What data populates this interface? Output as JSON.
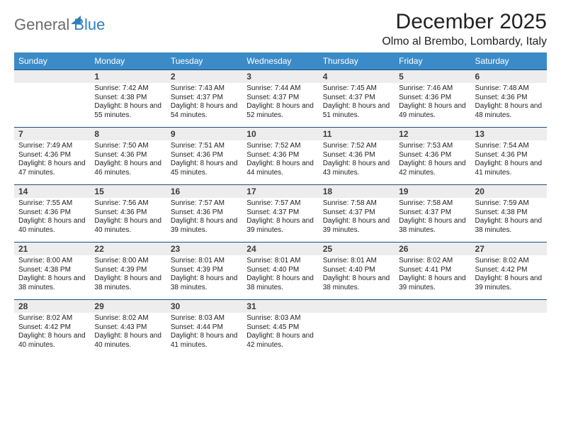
{
  "logo": {
    "text1": "General",
    "text2": "Blue"
  },
  "title": "December 2025",
  "location": "Olmo al Brembo, Lombardy, Italy",
  "colors": {
    "header_bg": "#3b8bc8",
    "header_fg": "#ffffff",
    "row_divider": "#1f4e79",
    "daynum_bg": "#ededed",
    "text": "#222222",
    "logo_gray": "#6b6b6b",
    "logo_blue": "#2f7fbf"
  },
  "day_names": [
    "Sunday",
    "Monday",
    "Tuesday",
    "Wednesday",
    "Thursday",
    "Friday",
    "Saturday"
  ],
  "first_weekday_index": 1,
  "days": [
    {
      "n": 1,
      "sunrise": "7:42 AM",
      "sunset": "4:38 PM",
      "daylight": "8 hours and 55 minutes."
    },
    {
      "n": 2,
      "sunrise": "7:43 AM",
      "sunset": "4:37 PM",
      "daylight": "8 hours and 54 minutes."
    },
    {
      "n": 3,
      "sunrise": "7:44 AM",
      "sunset": "4:37 PM",
      "daylight": "8 hours and 52 minutes."
    },
    {
      "n": 4,
      "sunrise": "7:45 AM",
      "sunset": "4:37 PM",
      "daylight": "8 hours and 51 minutes."
    },
    {
      "n": 5,
      "sunrise": "7:46 AM",
      "sunset": "4:36 PM",
      "daylight": "8 hours and 49 minutes."
    },
    {
      "n": 6,
      "sunrise": "7:48 AM",
      "sunset": "4:36 PM",
      "daylight": "8 hours and 48 minutes."
    },
    {
      "n": 7,
      "sunrise": "7:49 AM",
      "sunset": "4:36 PM",
      "daylight": "8 hours and 47 minutes."
    },
    {
      "n": 8,
      "sunrise": "7:50 AM",
      "sunset": "4:36 PM",
      "daylight": "8 hours and 46 minutes."
    },
    {
      "n": 9,
      "sunrise": "7:51 AM",
      "sunset": "4:36 PM",
      "daylight": "8 hours and 45 minutes."
    },
    {
      "n": 10,
      "sunrise": "7:52 AM",
      "sunset": "4:36 PM",
      "daylight": "8 hours and 44 minutes."
    },
    {
      "n": 11,
      "sunrise": "7:52 AM",
      "sunset": "4:36 PM",
      "daylight": "8 hours and 43 minutes."
    },
    {
      "n": 12,
      "sunrise": "7:53 AM",
      "sunset": "4:36 PM",
      "daylight": "8 hours and 42 minutes."
    },
    {
      "n": 13,
      "sunrise": "7:54 AM",
      "sunset": "4:36 PM",
      "daylight": "8 hours and 41 minutes."
    },
    {
      "n": 14,
      "sunrise": "7:55 AM",
      "sunset": "4:36 PM",
      "daylight": "8 hours and 40 minutes."
    },
    {
      "n": 15,
      "sunrise": "7:56 AM",
      "sunset": "4:36 PM",
      "daylight": "8 hours and 40 minutes."
    },
    {
      "n": 16,
      "sunrise": "7:57 AM",
      "sunset": "4:36 PM",
      "daylight": "8 hours and 39 minutes."
    },
    {
      "n": 17,
      "sunrise": "7:57 AM",
      "sunset": "4:37 PM",
      "daylight": "8 hours and 39 minutes."
    },
    {
      "n": 18,
      "sunrise": "7:58 AM",
      "sunset": "4:37 PM",
      "daylight": "8 hours and 39 minutes."
    },
    {
      "n": 19,
      "sunrise": "7:58 AM",
      "sunset": "4:37 PM",
      "daylight": "8 hours and 38 minutes."
    },
    {
      "n": 20,
      "sunrise": "7:59 AM",
      "sunset": "4:38 PM",
      "daylight": "8 hours and 38 minutes."
    },
    {
      "n": 21,
      "sunrise": "8:00 AM",
      "sunset": "4:38 PM",
      "daylight": "8 hours and 38 minutes."
    },
    {
      "n": 22,
      "sunrise": "8:00 AM",
      "sunset": "4:39 PM",
      "daylight": "8 hours and 38 minutes."
    },
    {
      "n": 23,
      "sunrise": "8:01 AM",
      "sunset": "4:39 PM",
      "daylight": "8 hours and 38 minutes."
    },
    {
      "n": 24,
      "sunrise": "8:01 AM",
      "sunset": "4:40 PM",
      "daylight": "8 hours and 38 minutes."
    },
    {
      "n": 25,
      "sunrise": "8:01 AM",
      "sunset": "4:40 PM",
      "daylight": "8 hours and 38 minutes."
    },
    {
      "n": 26,
      "sunrise": "8:02 AM",
      "sunset": "4:41 PM",
      "daylight": "8 hours and 39 minutes."
    },
    {
      "n": 27,
      "sunrise": "8:02 AM",
      "sunset": "4:42 PM",
      "daylight": "8 hours and 39 minutes."
    },
    {
      "n": 28,
      "sunrise": "8:02 AM",
      "sunset": "4:42 PM",
      "daylight": "8 hours and 40 minutes."
    },
    {
      "n": 29,
      "sunrise": "8:02 AM",
      "sunset": "4:43 PM",
      "daylight": "8 hours and 40 minutes."
    },
    {
      "n": 30,
      "sunrise": "8:03 AM",
      "sunset": "4:44 PM",
      "daylight": "8 hours and 41 minutes."
    },
    {
      "n": 31,
      "sunrise": "8:03 AM",
      "sunset": "4:45 PM",
      "daylight": "8 hours and 42 minutes."
    }
  ],
  "labels": {
    "sunrise": "Sunrise:",
    "sunset": "Sunset:",
    "daylight": "Daylight:"
  }
}
